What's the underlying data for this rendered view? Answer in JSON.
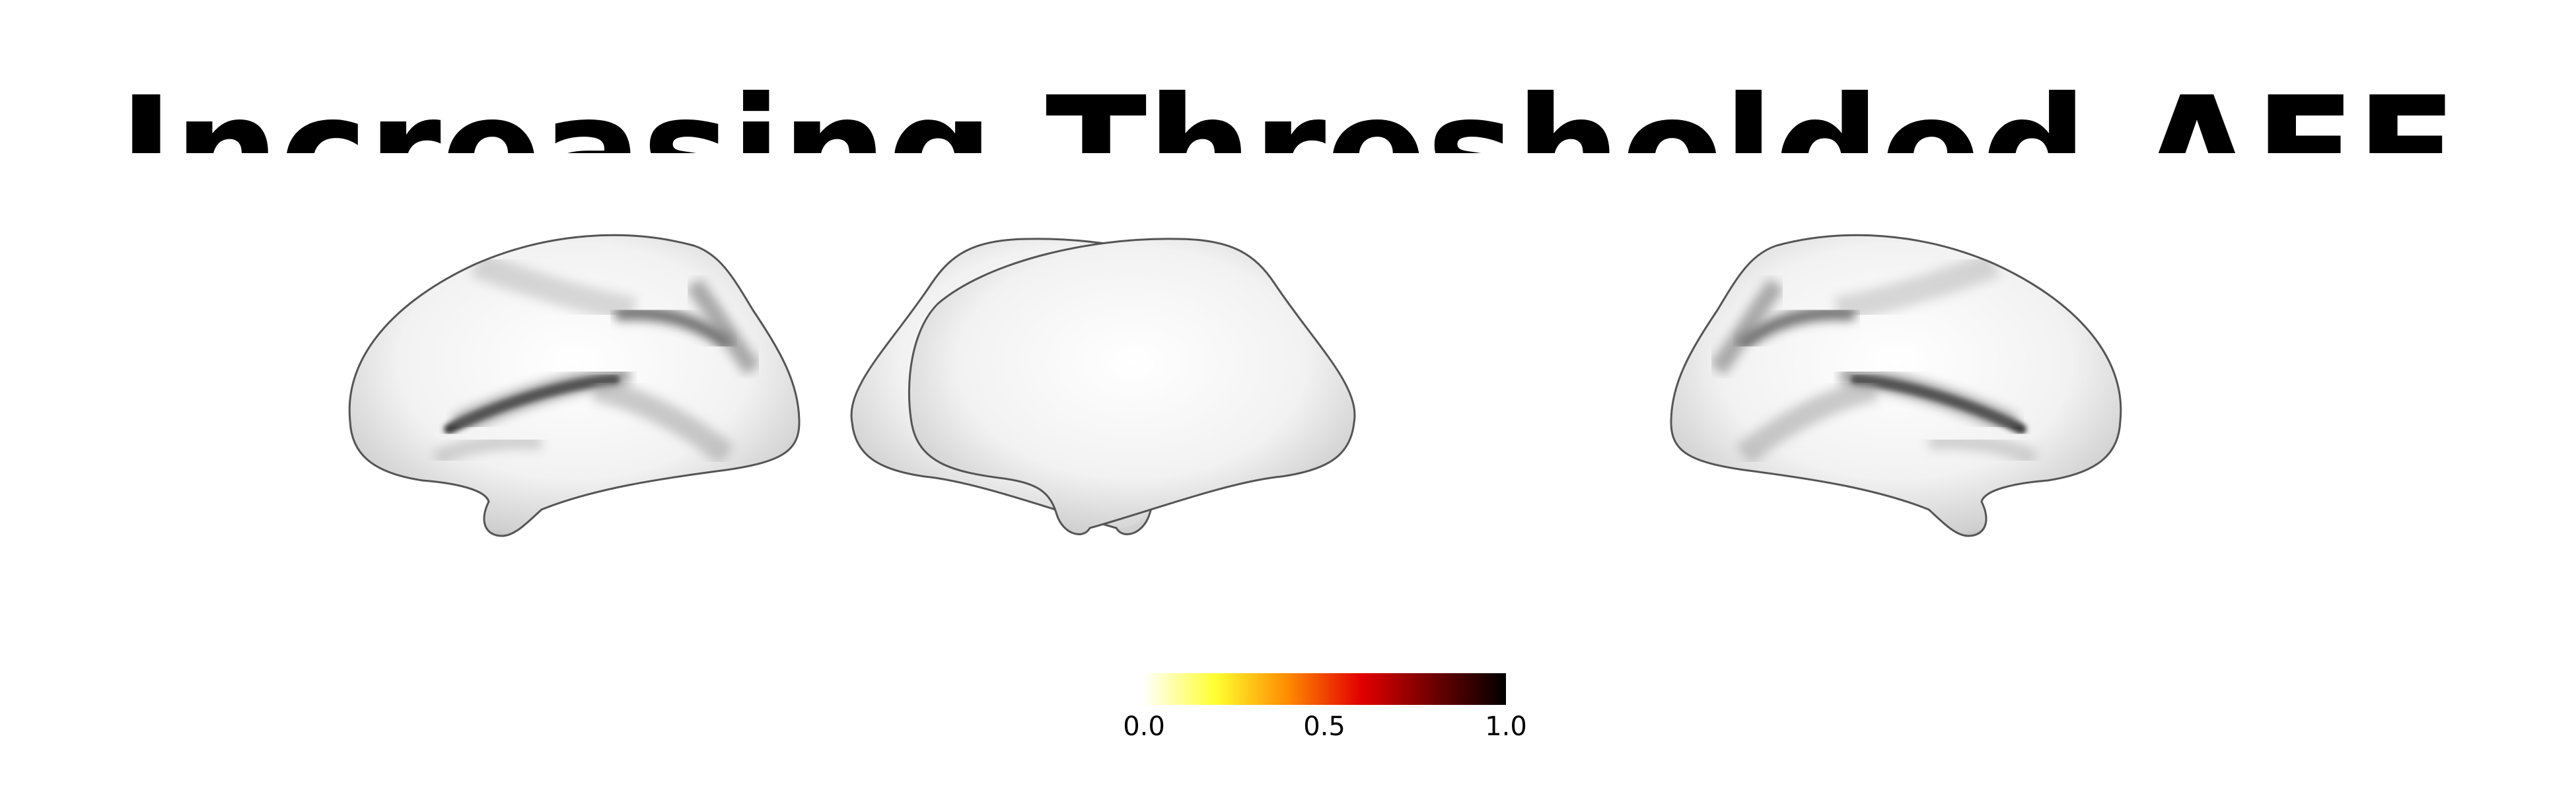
{
  "figure": {
    "title": "Increasing Thresholded AFE",
    "colormap": {
      "name": "hot_r",
      "stops": [
        "#ffffff",
        "#ffff30",
        "#ff8a00",
        "#e30000",
        "#6e0000",
        "#000000"
      ]
    },
    "colorbar": {
      "min": 0.0,
      "max": 1.0,
      "ticks": [
        "0.0",
        "0.5",
        "1.0"
      ]
    },
    "views": [
      "left-lateral",
      "left-medial",
      "right-medial",
      "right-lateral"
    ]
  }
}
